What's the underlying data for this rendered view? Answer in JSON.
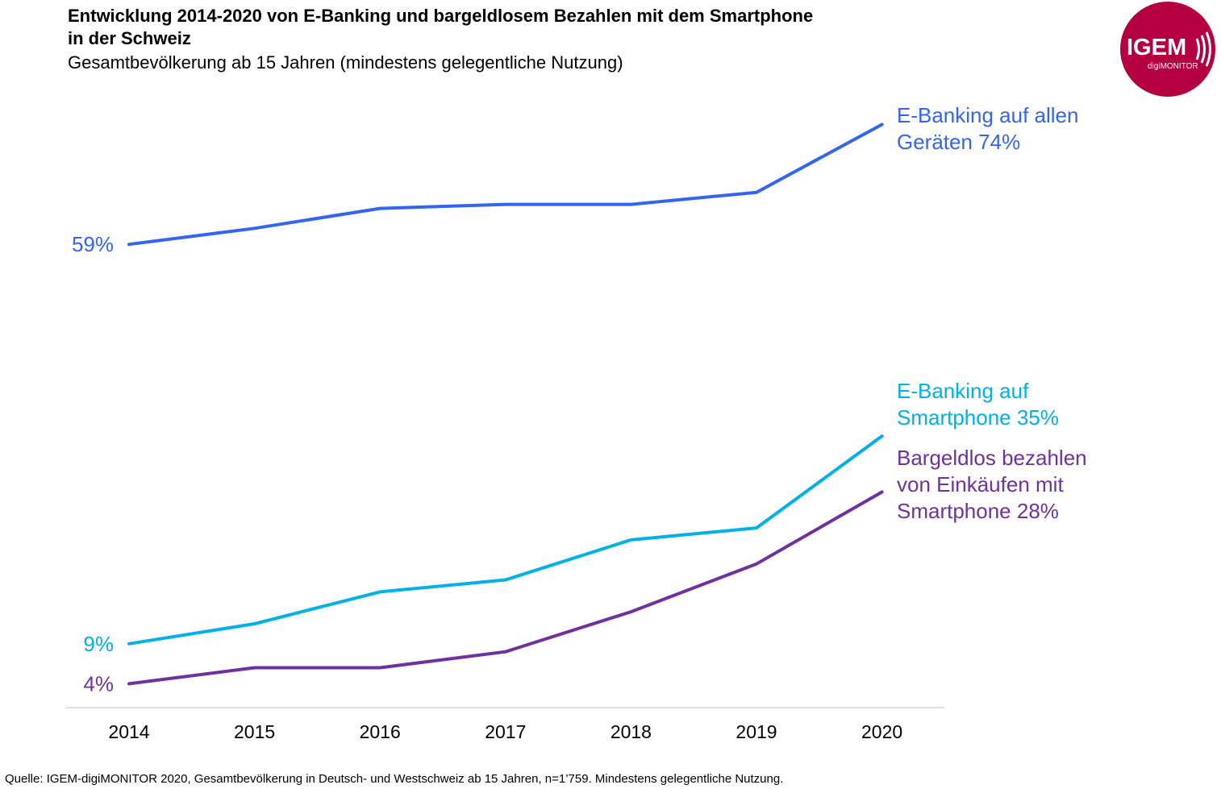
{
  "header": {
    "title_line1": "Entwicklung 2014-2020 von E-Banking und bargeldlosem Bezahlen mit dem Smartphone",
    "title_line2": "in der Schweiz",
    "subtitle": "Gesamtbevölkerung ab 15 Jahren (mindestens gelegentliche Nutzung)"
  },
  "logo": {
    "brand": "IGEM",
    "product": "digiMONITOR",
    "color": "#b5003f"
  },
  "footer": {
    "source": "Quelle: IGEM-digiMONITOR 2020, Gesamtbevölkerung in Deutsch- und Westschweiz ab 15 Jahren, n=1’759. Mindestens gelegentliche Nutzung."
  },
  "chart_data": {
    "type": "line",
    "title": "Entwicklung 2014-2020 von E-Banking und bargeldlosem Bezahlen mit dem Smartphone in der Schweiz",
    "xlabel": "",
    "ylabel": "",
    "ylim": [
      0,
      80
    ],
    "grid": false,
    "categories": [
      "2014",
      "2015",
      "2016",
      "2017",
      "2018",
      "2019",
      "2020"
    ],
    "series": [
      {
        "name": "E-Banking auf allen Geräten",
        "color": "#3366f0",
        "values": [
          59,
          61,
          63.5,
          64,
          64,
          65.5,
          74
        ],
        "start_label": "59%",
        "end_label_lines": [
          "E-Banking auf allen",
          "Geräten 74%"
        ]
      },
      {
        "name": "E-Banking auf Smartphone",
        "color": "#00b0e8",
        "values": [
          9,
          11.5,
          15.5,
          17,
          22,
          23.5,
          35
        ],
        "start_label": "9%",
        "end_label_lines": [
          "E-Banking auf",
          "Smartphone 35%"
        ]
      },
      {
        "name": "Bargeldlos bezahlen von Einkäufen mit Smartphone",
        "color": "#7030a0",
        "values": [
          4,
          6,
          6,
          8,
          13,
          19,
          28
        ],
        "start_label": "4%",
        "end_label_lines": [
          "Bargeldlos bezahlen",
          "von Einkäufen mit",
          "Smartphone 28%"
        ]
      }
    ]
  }
}
